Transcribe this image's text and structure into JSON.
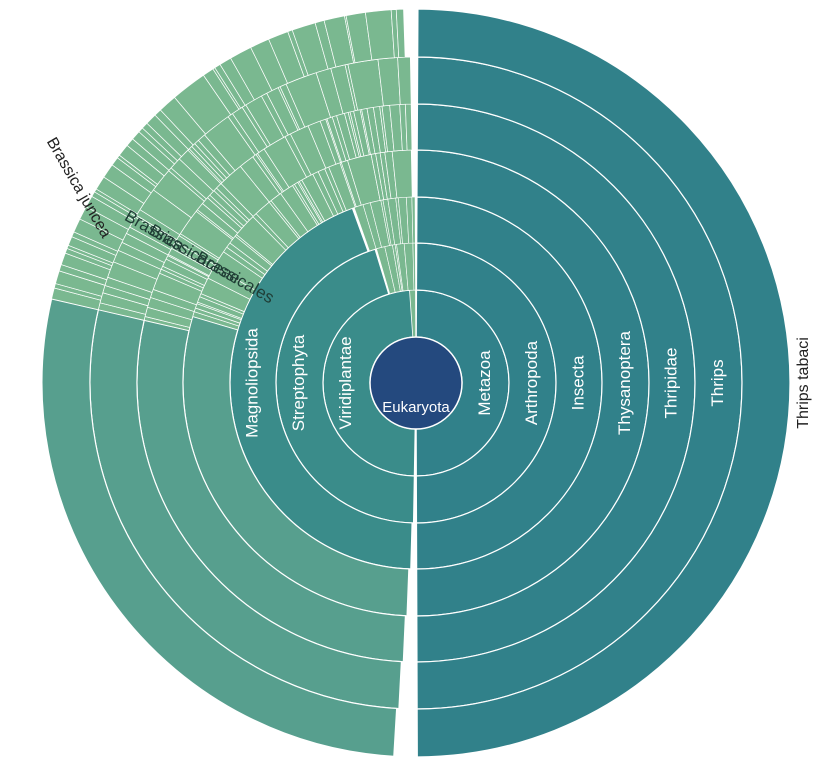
{
  "chart_data": {
    "type": "sunburst",
    "root": {
      "name": "Eukaryota"
    },
    "colors": {
      "root": "#24497e",
      "metazoa_branch": "#31818a",
      "viridiplantae_branch": "#3a8c8a",
      "brassica_branch": "#579f8e",
      "other_plants": "#7ab890",
      "stroke": "#ffffff",
      "inner_label": "#ffffff",
      "outer_label": "#222222"
    },
    "branches": [
      {
        "name": "Metazoa",
        "share": 0.5,
        "lineage": [
          "Metazoa",
          "Arthropoda",
          "Insecta",
          "Thysanoptera",
          "Thripidae",
          "Thrips"
        ],
        "species": "Thrips tabaci"
      },
      {
        "name": "Viridiplantae",
        "share": 0.5,
        "lineage": [
          "Viridiplantae",
          "Streptophyta",
          "Magnoliopsida",
          "Brassicales",
          "Brassicaceae",
          "Brassica"
        ],
        "species": "Brassica juncea",
        "shares": {
          "Streptophyta": 0.45,
          "Magnoliopsida": 0.44,
          "Brassicales": 0.29,
          "Brassicaceae": 0.28,
          "Brassica": 0.28,
          "Brassica juncea": 0.28
        }
      }
    ]
  }
}
